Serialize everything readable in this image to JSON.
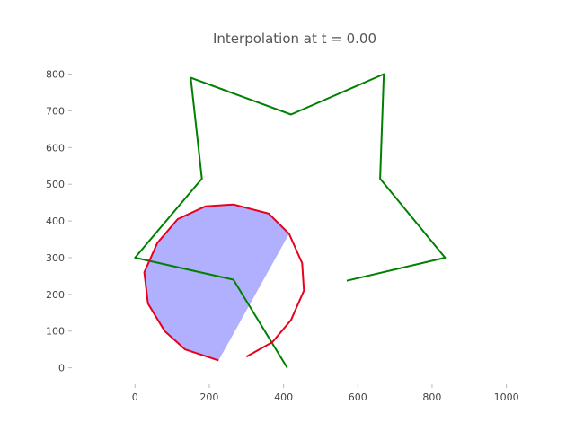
{
  "chart_data": {
    "type": "line",
    "title": "Interpolation at t = 0.00",
    "xlabel": "",
    "ylabel": "",
    "xlim": [
      -170,
      1030
    ],
    "ylim": [
      -45,
      860
    ],
    "x_ticks": [
      0,
      200,
      400,
      600,
      800,
      1000
    ],
    "y_ticks": [
      0,
      100,
      200,
      300,
      400,
      500,
      600,
      700,
      800
    ],
    "x_tick_labels": [
      "0",
      "200",
      "400",
      "600",
      "800",
      "1000"
    ],
    "y_tick_labels": [
      "0",
      "100",
      "200",
      "300",
      "400",
      "500",
      "600",
      "700",
      "800"
    ],
    "grid": false,
    "legend": "none",
    "colors": {
      "star": "#008000",
      "circle": "#e8001c",
      "fill": "#b0b0ff"
    },
    "series": [
      {
        "points": [
          [
            410,
            0
          ],
          [
            265,
            240
          ],
          [
            0,
            300
          ],
          [
            180,
            515
          ],
          [
            150,
            790
          ],
          [
            420,
            690
          ],
          [
            670,
            800
          ],
          [
            660,
            515
          ],
          [
            835,
            300
          ],
          [
            570,
            237
          ]
        ]
      },
      {
        "points": [
          [
            300,
            30
          ],
          [
            370,
            70
          ],
          [
            420,
            130
          ],
          [
            455,
            210
          ],
          [
            450,
            285
          ],
          [
            415,
            365
          ],
          [
            360,
            420
          ],
          [
            265,
            445
          ],
          [
            190,
            440
          ],
          [
            115,
            405
          ],
          [
            60,
            340
          ],
          [
            25,
            260
          ],
          [
            35,
            175
          ],
          [
            80,
            100
          ],
          [
            135,
            50
          ],
          [
            225,
            20
          ]
        ]
      }
    ],
    "fill_polygon": [
      [
        415,
        365
      ],
      [
        360,
        420
      ],
      [
        265,
        445
      ],
      [
        190,
        440
      ],
      [
        115,
        405
      ],
      [
        60,
        340
      ],
      [
        25,
        260
      ],
      [
        35,
        175
      ],
      [
        80,
        100
      ],
      [
        135,
        50
      ],
      [
        225,
        20
      ]
    ]
  }
}
